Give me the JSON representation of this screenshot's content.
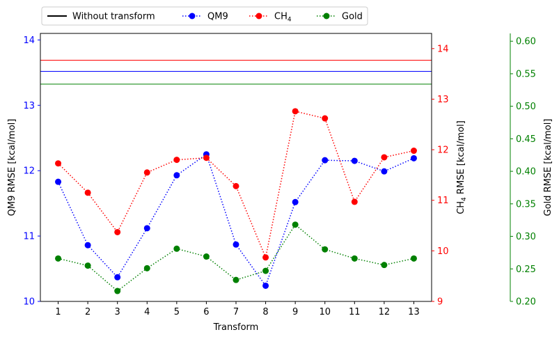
{
  "chart_data": {
    "type": "line",
    "xlabel": "Transform",
    "x": [
      1,
      2,
      3,
      4,
      5,
      6,
      7,
      8,
      9,
      10,
      11,
      12,
      13
    ],
    "xlim": [
      0.4,
      13.6
    ],
    "axes": {
      "left": {
        "label": "QM9 RMSE [kcal/mol]",
        "color": "#0000ff",
        "ylim": [
          10,
          14.1
        ],
        "ticks": [
          10,
          11,
          12,
          13,
          14
        ]
      },
      "right": {
        "label_main": "CH",
        "label_sub": "4",
        "label_rest": " RMSE [kcal/mol]",
        "color": "#ff0000",
        "ylim": [
          9,
          14.3
        ],
        "ticks": [
          9,
          10,
          11,
          12,
          13,
          14
        ]
      },
      "outer": {
        "label": "Gold RMSE [kcal/mol]",
        "color": "#008000",
        "ylim": [
          0.2,
          0.612
        ],
        "ticks": [
          0.2,
          0.25,
          0.3,
          0.35,
          0.4,
          0.45,
          0.5,
          0.55,
          0.6
        ]
      }
    },
    "baselines": [
      {
        "axis": "right",
        "value": 13.77,
        "color": "#ff0000"
      },
      {
        "axis": "left",
        "value": 13.52,
        "color": "#0000ff"
      },
      {
        "axis": "outer",
        "value": 0.534,
        "color": "#008000"
      }
    ],
    "series": [
      {
        "name": "QM9",
        "axis": "left",
        "color": "#0000ff",
        "values": [
          11.83,
          10.86,
          10.37,
          11.12,
          11.93,
          12.25,
          10.87,
          10.24,
          11.52,
          12.16,
          12.15,
          11.99,
          12.19
        ]
      },
      {
        "name": "CH4",
        "name_main": "CH",
        "name_sub": "4",
        "axis": "right",
        "color": "#ff0000",
        "values": [
          11.73,
          11.15,
          10.37,
          11.55,
          11.8,
          11.84,
          11.28,
          9.87,
          12.76,
          12.62,
          10.97,
          11.85,
          11.98
        ]
      },
      {
        "name": "Gold",
        "axis": "outer",
        "color": "#008000",
        "values": [
          0.266,
          0.255,
          0.216,
          0.251,
          0.281,
          0.269,
          0.233,
          0.247,
          0.318,
          0.28,
          0.266,
          0.256,
          0.266
        ]
      }
    ],
    "legend": {
      "placement": "top-left, outside",
      "items": [
        {
          "label": "Without transform",
          "style": "solid",
          "color": "#000000"
        },
        {
          "label": "QM9",
          "style": "dotted-marker",
          "color": "#0000ff"
        },
        {
          "label_main": "CH",
          "label_sub": "4",
          "style": "dotted-marker",
          "color": "#ff0000"
        },
        {
          "label": "Gold",
          "style": "dotted-marker",
          "color": "#008000"
        }
      ]
    }
  }
}
